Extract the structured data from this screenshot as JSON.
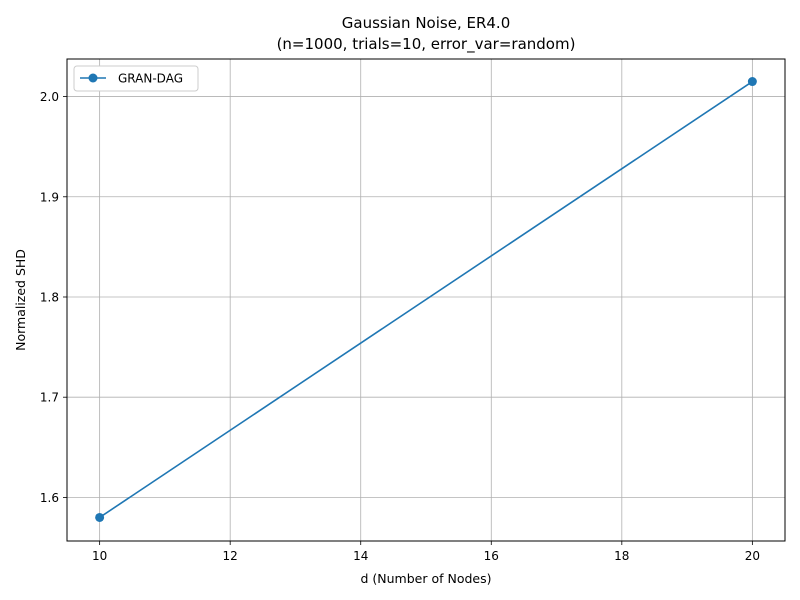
{
  "chart_data": {
    "type": "line",
    "title": "Gaussian Noise, ER4.0",
    "subtitle": "(n=1000, trials=10, error_var=random)",
    "xlabel": "d (Number of Nodes)",
    "ylabel": "Normalized SHD",
    "xlim": [
      9.5,
      20.5
    ],
    "ylim": [
      1.5565,
      2.0375
    ],
    "xticks": [
      10,
      12,
      14,
      16,
      18,
      20
    ],
    "yticks": [
      1.6,
      1.7,
      1.8,
      1.9,
      2.0
    ],
    "xtick_labels": [
      "10",
      "12",
      "14",
      "16",
      "18",
      "20"
    ],
    "ytick_labels": [
      "1.6",
      "1.7",
      "1.8",
      "1.9",
      "2.0"
    ],
    "grid": true,
    "legend_position": "top-left",
    "series": [
      {
        "name": "GRAN-DAG",
        "color": "#1f77b4",
        "marker": "circle",
        "x": [
          10,
          20
        ],
        "y": [
          1.58,
          2.015
        ]
      }
    ]
  }
}
